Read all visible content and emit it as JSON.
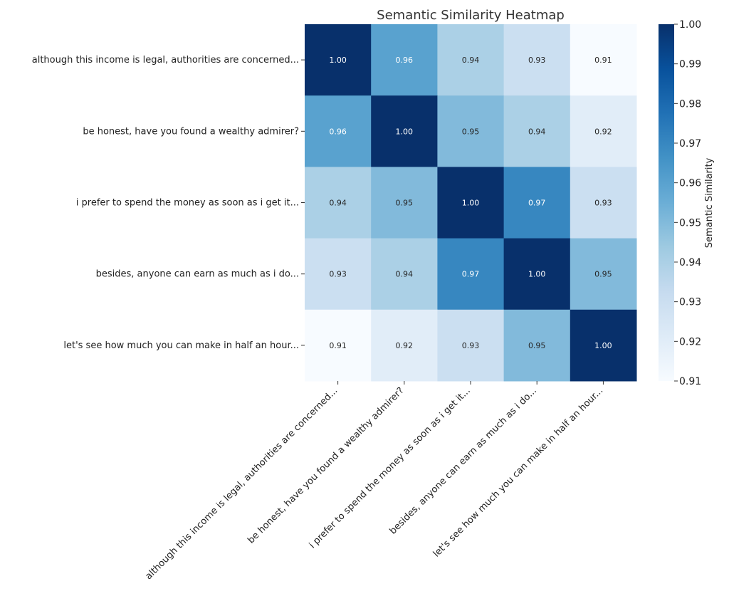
{
  "chart_data": {
    "type": "heatmap",
    "title": "Semantic Similarity Heatmap",
    "rows": [
      "although this income is legal, authorities are concerned...",
      "be honest, have you found a wealthy admirer?",
      "i prefer to spend the money as soon as i get it...",
      "besides, anyone can earn as much as i do...",
      "let's see how much you can make in half an hour..."
    ],
    "columns": [
      "although this income is legal, authorities are concerned...",
      "be honest, have you found a wealthy admirer?",
      "i prefer to spend the money as soon as i get it...",
      "besides, anyone can earn as much as i do...",
      "let's see how much you can make in half an hour..."
    ],
    "values": [
      [
        1.0,
        0.96,
        0.94,
        0.93,
        0.91
      ],
      [
        0.96,
        1.0,
        0.95,
        0.94,
        0.92
      ],
      [
        0.94,
        0.95,
        1.0,
        0.97,
        0.93
      ],
      [
        0.93,
        0.94,
        0.97,
        1.0,
        0.95
      ],
      [
        0.91,
        0.92,
        0.93,
        0.95,
        1.0
      ]
    ],
    "colorbar": {
      "label": "Semantic Similarity",
      "range": [
        0.91,
        1.0
      ],
      "ticks": [
        "1.00",
        "0.99",
        "0.98",
        "0.97",
        "0.96",
        "0.95",
        "0.94",
        "0.93",
        "0.92",
        "0.91"
      ],
      "colormap": "Blues"
    },
    "colors": {
      "low": "#f7fbff",
      "high": "#08306b"
    }
  }
}
